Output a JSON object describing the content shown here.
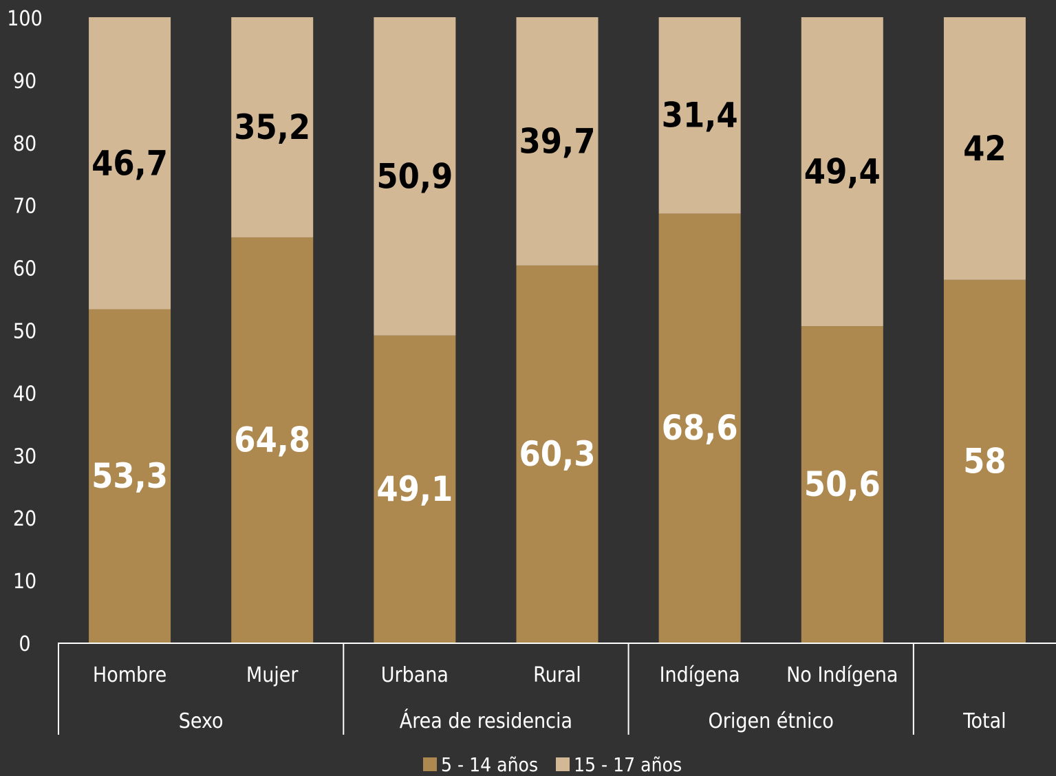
{
  "chart_data": {
    "type": "bar",
    "stacked": true,
    "categories": [
      "Hombre",
      "Mujer",
      "Urbana",
      "Rural",
      "Indígena",
      "No Indígena",
      "Total"
    ],
    "groups": [
      {
        "label": "Sexo",
        "categories": [
          "Hombre",
          "Mujer"
        ]
      },
      {
        "label": "Área de residencia",
        "categories": [
          "Urbana",
          "Rural"
        ]
      },
      {
        "label": "Origen étnico",
        "categories": [
          "Indígena",
          "No Indígena"
        ]
      },
      {
        "label": "Total",
        "categories": [
          "Total"
        ]
      }
    ],
    "series": [
      {
        "name": "5  - 14 años",
        "values": [
          53.3,
          64.8,
          49.1,
          60.3,
          68.6,
          50.6,
          58
        ],
        "labels": [
          "53,3",
          "64,8",
          "49,1",
          "60,3",
          "68,6",
          "50,6",
          "58"
        ],
        "color": "#ad884f"
      },
      {
        "name": "15 - 17 años",
        "values": [
          46.7,
          35.2,
          50.9,
          39.7,
          31.4,
          49.4,
          42
        ],
        "labels": [
          "46,7",
          "35,2",
          "50,9",
          "39,7",
          "31,4",
          "49,4",
          "42"
        ],
        "color": "#d3b896"
      }
    ],
    "yticks": [
      "0",
      "10",
      "20",
      "30",
      "40",
      "50",
      "60",
      "70",
      "80",
      "90",
      "100"
    ],
    "ylim": [
      0,
      100
    ],
    "legend": "bottom-center",
    "grid": false,
    "background": "#323232"
  }
}
